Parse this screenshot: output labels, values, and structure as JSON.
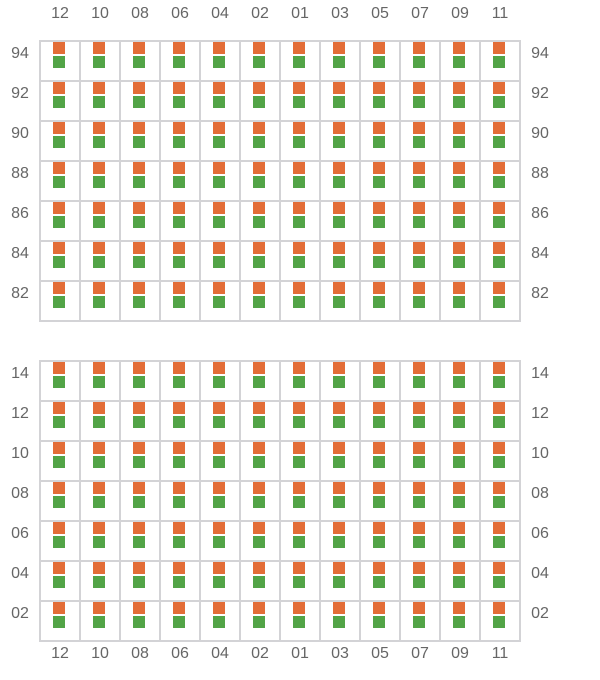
{
  "columns": [
    "12",
    "10",
    "08",
    "06",
    "04",
    "02",
    "01",
    "03",
    "05",
    "07",
    "09",
    "11"
  ],
  "sections": [
    {
      "rows": [
        "94",
        "92",
        "90",
        "88",
        "86",
        "84",
        "82"
      ]
    },
    {
      "rows": [
        "14",
        "12",
        "10",
        "08",
        "06",
        "04",
        "02"
      ]
    }
  ],
  "colors": {
    "top_seat": "#e36d37",
    "bottom_seat": "#52a447",
    "grid": "#d3d3d6"
  }
}
